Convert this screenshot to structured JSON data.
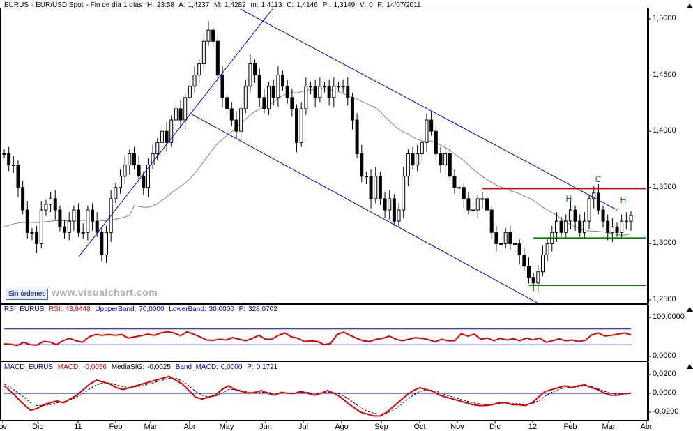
{
  "header": {
    "symbol": "EURUS",
    "name": "EUR/USD Spot",
    "period": "Fin de día 1 días",
    "hour_label": "H:",
    "hour": "23:58",
    "open_label": "A:",
    "open": "1,4237",
    "high_label": "M:",
    "high": "1,4282",
    "low_label": "m:",
    "low": "1,4113",
    "close_label": "C:",
    "close": "1,4146",
    "p_label": "P :",
    "p": "1,3149",
    "v_label": "V:",
    "v": "0",
    "f_label": "F:",
    "f": "14/07/2011"
  },
  "rsi_panel": {
    "name": "RSI_EURUS",
    "rsi_label": "RSI:",
    "rsi": "43,9448",
    "upper_label": "UppperBand:",
    "upper": "70,0000",
    "lower_label": "LowerBand:",
    "lower": "30,0000",
    "p_label": "P:",
    "p": "328,0702"
  },
  "macd_panel": {
    "name": "MACD_EURUS",
    "macd_label": "MACD:",
    "macd": "-0,0056",
    "sig_label": "MediaSIG:",
    "sig": "-0,0025",
    "band_label": "Band_MACD:",
    "band": "0,0000",
    "p_label": "P:",
    "p": "0,1721"
  },
  "orders_button": "Sin órdenes",
  "watermark": "www.visualchart.com",
  "annotations": {
    "c": "C",
    "h1": "H",
    "h2": "H"
  },
  "colors": {
    "price": "#000000",
    "channel": "#0000cc",
    "moving_average": "#808080",
    "resistance": "#dd0000",
    "support": "#008000",
    "rsi": "#dd0000",
    "macd": "#dd0000",
    "signal": "#000000",
    "annotation": "#008000"
  },
  "chart_data": [
    {
      "type": "candlestick",
      "title": "EURUS - EUR/USD Spot - Fin de día 1 días",
      "y_ticks": [
        "1,5000",
        "1,4500",
        "1,4000",
        "1,3500",
        "1,3000",
        "1,2500"
      ],
      "ylim": [
        1.2475,
        1.5093
      ],
      "x_ticks": [
        "ov",
        "Dic",
        "11",
        "Feb",
        "Mar",
        "Abr",
        "May",
        "Jun",
        "Jul",
        "Ago",
        "Sep",
        "Oct",
        "Nov",
        "Dic",
        "12",
        "Feb",
        "Mar",
        "Abr"
      ],
      "closes": [
        {
          "x": 0,
          "y": 1.38
        },
        {
          "x": 1,
          "y": 1.37
        },
        {
          "x": 2,
          "y": 1.37
        },
        {
          "x": 3,
          "y": 1.35
        },
        {
          "x": 4,
          "y": 1.33
        },
        {
          "x": 5,
          "y": 1.31
        },
        {
          "x": 6,
          "y": 1.31
        },
        {
          "x": 7,
          "y": 1.3
        },
        {
          "x": 8,
          "y": 1.33
        },
        {
          "x": 9,
          "y": 1.335
        },
        {
          "x": 10,
          "y": 1.34
        },
        {
          "x": 11,
          "y": 1.33
        },
        {
          "x": 12,
          "y": 1.315
        },
        {
          "x": 13,
          "y": 1.31
        },
        {
          "x": 14,
          "y": 1.32
        },
        {
          "x": 15,
          "y": 1.33
        },
        {
          "x": 16,
          "y": 1.31
        },
        {
          "x": 17,
          "y": 1.31
        },
        {
          "x": 18,
          "y": 1.33
        },
        {
          "x": 19,
          "y": 1.32
        },
        {
          "x": 20,
          "y": 1.31
        },
        {
          "x": 21,
          "y": 1.29
        },
        {
          "x": 22,
          "y": 1.31
        },
        {
          "x": 23,
          "y": 1.34
        },
        {
          "x": 24,
          "y": 1.35
        },
        {
          "x": 25,
          "y": 1.36
        },
        {
          "x": 26,
          "y": 1.37
        },
        {
          "x": 27,
          "y": 1.38
        },
        {
          "x": 28,
          "y": 1.37
        },
        {
          "x": 29,
          "y": 1.36
        },
        {
          "x": 30,
          "y": 1.35
        },
        {
          "x": 31,
          "y": 1.37
        },
        {
          "x": 32,
          "y": 1.38
        },
        {
          "x": 33,
          "y": 1.39
        },
        {
          "x": 34,
          "y": 1.4
        },
        {
          "x": 35,
          "y": 1.39
        },
        {
          "x": 36,
          "y": 1.41
        },
        {
          "x": 37,
          "y": 1.42
        },
        {
          "x": 38,
          "y": 1.41
        },
        {
          "x": 39,
          "y": 1.43
        },
        {
          "x": 40,
          "y": 1.44
        },
        {
          "x": 41,
          "y": 1.45
        },
        {
          "x": 42,
          "y": 1.46
        },
        {
          "x": 43,
          "y": 1.48
        },
        {
          "x": 44,
          "y": 1.49
        },
        {
          "x": 45,
          "y": 1.48
        },
        {
          "x": 46,
          "y": 1.45
        },
        {
          "x": 47,
          "y": 1.43
        },
        {
          "x": 48,
          "y": 1.42
        },
        {
          "x": 49,
          "y": 1.41
        },
        {
          "x": 50,
          "y": 1.4
        },
        {
          "x": 51,
          "y": 1.42
        },
        {
          "x": 52,
          "y": 1.44
        },
        {
          "x": 53,
          "y": 1.46
        },
        {
          "x": 54,
          "y": 1.45
        },
        {
          "x": 55,
          "y": 1.43
        },
        {
          "x": 56,
          "y": 1.42
        },
        {
          "x": 57,
          "y": 1.44
        },
        {
          "x": 58,
          "y": 1.43
        },
        {
          "x": 59,
          "y": 1.45
        },
        {
          "x": 60,
          "y": 1.44
        },
        {
          "x": 61,
          "y": 1.43
        },
        {
          "x": 62,
          "y": 1.42
        },
        {
          "x": 63,
          "y": 1.39
        },
        {
          "x": 64,
          "y": 1.42
        },
        {
          "x": 65,
          "y": 1.44
        },
        {
          "x": 66,
          "y": 1.44
        },
        {
          "x": 67,
          "y": 1.43
        },
        {
          "x": 68,
          "y": 1.44
        },
        {
          "x": 69,
          "y": 1.44
        },
        {
          "x": 70,
          "y": 1.43
        },
        {
          "x": 71,
          "y": 1.44
        },
        {
          "x": 72,
          "y": 1.44
        },
        {
          "x": 73,
          "y": 1.44
        },
        {
          "x": 74,
          "y": 1.43
        },
        {
          "x": 75,
          "y": 1.41
        },
        {
          "x": 76,
          "y": 1.38
        },
        {
          "x": 77,
          "y": 1.36
        },
        {
          "x": 78,
          "y": 1.36
        },
        {
          "x": 79,
          "y": 1.34
        },
        {
          "x": 80,
          "y": 1.36
        },
        {
          "x": 81,
          "y": 1.34
        },
        {
          "x": 82,
          "y": 1.33
        },
        {
          "x": 83,
          "y": 1.34
        },
        {
          "x": 84,
          "y": 1.32
        },
        {
          "x": 85,
          "y": 1.33
        },
        {
          "x": 86,
          "y": 1.36
        },
        {
          "x": 87,
          "y": 1.38
        },
        {
          "x": 88,
          "y": 1.37
        },
        {
          "x": 89,
          "y": 1.38
        },
        {
          "x": 90,
          "y": 1.39
        },
        {
          "x": 91,
          "y": 1.41
        },
        {
          "x": 92,
          "y": 1.4
        },
        {
          "x": 93,
          "y": 1.38
        },
        {
          "x": 94,
          "y": 1.37
        },
        {
          "x": 95,
          "y": 1.38
        },
        {
          "x": 96,
          "y": 1.36
        },
        {
          "x": 97,
          "y": 1.35
        },
        {
          "x": 98,
          "y": 1.35
        },
        {
          "x": 99,
          "y": 1.34
        },
        {
          "x": 100,
          "y": 1.33
        },
        {
          "x": 101,
          "y": 1.33
        },
        {
          "x": 102,
          "y": 1.34
        },
        {
          "x": 103,
          "y": 1.34
        },
        {
          "x": 104,
          "y": 1.33
        },
        {
          "x": 105,
          "y": 1.31
        },
        {
          "x": 106,
          "y": 1.3
        },
        {
          "x": 107,
          "y": 1.3
        },
        {
          "x": 108,
          "y": 1.31
        },
        {
          "x": 109,
          "y": 1.3
        },
        {
          "x": 110,
          "y": 1.3
        },
        {
          "x": 111,
          "y": 1.29
        },
        {
          "x": 112,
          "y": 1.28
        },
        {
          "x": 113,
          "y": 1.27
        },
        {
          "x": 114,
          "y": 1.265
        },
        {
          "x": 115,
          "y": 1.275
        },
        {
          "x": 116,
          "y": 1.29
        },
        {
          "x": 117,
          "y": 1.3
        },
        {
          "x": 118,
          "y": 1.31
        },
        {
          "x": 119,
          "y": 1.32
        },
        {
          "x": 120,
          "y": 1.31
        },
        {
          "x": 121,
          "y": 1.32
        },
        {
          "x": 122,
          "y": 1.33
        },
        {
          "x": 123,
          "y": 1.32
        },
        {
          "x": 124,
          "y": 1.31
        },
        {
          "x": 125,
          "y": 1.32
        },
        {
          "x": 126,
          "y": 1.34
        },
        {
          "x": 127,
          "y": 1.345
        },
        {
          "x": 128,
          "y": 1.33
        },
        {
          "x": 129,
          "y": 1.32
        },
        {
          "x": 130,
          "y": 1.31
        },
        {
          "x": 131,
          "y": 1.315
        },
        {
          "x": 132,
          "y": 1.31
        },
        {
          "x": 133,
          "y": 1.32
        },
        {
          "x": 134,
          "y": 1.32
        },
        {
          "x": 135,
          "y": 1.325
        }
      ],
      "overlays": {
        "channel_upper": [
          {
            "x": 48,
            "y": 1.515
          },
          {
            "x": 132,
            "y": 1.33
          }
        ],
        "channel_lower": [
          {
            "x": 40,
            "y": 1.416
          },
          {
            "x": 115,
            "y": 1.247
          }
        ],
        "trend_support": [
          {
            "x": 16,
            "y": 1.288
          },
          {
            "x": 58,
            "y": 1.51
          }
        ],
        "resistance": {
          "y": 1.349,
          "x_from": 103,
          "x_to": 135
        },
        "support_upper": {
          "y": 1.305,
          "x_from": 114,
          "x_to": 135
        },
        "support_lower": {
          "y": 1.263,
          "x_from": 113,
          "x_to": 135
        }
      }
    },
    {
      "type": "line",
      "title": "RSI_EURUS",
      "y_ticks": [
        "100,0000",
        "0,0000"
      ],
      "ylim": [
        -2,
        112
      ],
      "bands": [
        70,
        30
      ],
      "values": [
        32,
        31,
        28,
        36,
        30,
        29,
        38,
        37,
        30,
        40,
        46,
        40,
        36,
        50,
        56,
        54,
        56,
        54,
        56,
        47,
        50,
        53,
        57,
        54,
        60,
        63,
        60,
        53,
        63,
        57,
        50,
        42,
        41,
        44,
        42,
        48,
        44,
        40,
        46,
        54,
        44,
        44,
        54,
        60,
        50,
        46,
        38,
        40,
        38,
        30,
        33,
        56,
        62,
        54,
        46,
        40,
        38,
        44,
        46,
        52,
        44,
        40,
        44,
        48,
        46,
        43,
        37,
        44,
        40,
        40,
        58,
        52,
        57,
        44,
        47,
        40,
        46,
        42,
        45,
        40,
        47,
        42,
        47,
        36,
        40,
        45,
        40,
        42,
        38,
        41,
        55,
        60,
        52,
        54,
        57,
        60,
        55
      ]
    },
    {
      "type": "line",
      "title": "MACD_EURUS",
      "y_ticks": [
        "0,0200",
        "0,0000",
        "-0,0200"
      ],
      "ylim": [
        -0.029,
        0.026
      ],
      "macd": [
        0.008,
        0.002,
        -0.005,
        -0.012,
        -0.018,
        -0.016,
        -0.012,
        -0.01,
        -0.008,
        -0.01,
        -0.006,
        -0.002,
        0.004,
        0.01,
        0.014,
        0.012,
        0.01,
        0.006,
        0.004,
        0.006,
        0.008,
        0.01,
        0.012,
        0.014,
        0.016,
        0.018,
        0.014,
        0.01,
        0.003,
        -0.004,
        -0.006,
        -0.004,
        -0.002,
        0.004,
        0.008,
        0.004,
        0.002,
        0.0,
        0.001,
        0.003,
        0.0,
        -0.002,
        0.001,
        0.0,
        0.0,
        0.002,
        0.0,
        -0.002,
        0.0,
        0.003,
        0.0,
        -0.004,
        -0.01,
        -0.015,
        -0.02,
        -0.022,
        -0.024,
        -0.024,
        -0.02,
        -0.014,
        -0.008,
        -0.002,
        0.003,
        0.006,
        0.004,
        0.002,
        -0.002,
        -0.004,
        -0.006,
        -0.008,
        -0.01,
        -0.012,
        -0.013,
        -0.013,
        -0.012,
        -0.01,
        -0.01,
        -0.012,
        -0.012,
        -0.013,
        -0.01,
        -0.004,
        0.002,
        0.004,
        0.006,
        0.008,
        0.006,
        0.008,
        0.009,
        0.006,
        0.004,
        0.0,
        -0.002,
        -0.002,
        0.0,
        0.0
      ],
      "signal": [
        0.01,
        0.006,
        0.001,
        -0.004,
        -0.01,
        -0.013,
        -0.013,
        -0.012,
        -0.01,
        -0.009,
        -0.007,
        -0.004,
        0.0,
        0.005,
        0.009,
        0.011,
        0.011,
        0.009,
        0.007,
        0.006,
        0.007,
        0.008,
        0.01,
        0.012,
        0.014,
        0.016,
        0.016,
        0.013,
        0.008,
        0.002,
        -0.002,
        -0.004,
        -0.003,
        0.0,
        0.004,
        0.004,
        0.003,
        0.001,
        0.0,
        0.001,
        0.001,
        0.0,
        0.0,
        0.0,
        0.0,
        0.001,
        0.001,
        0.0,
        0.0,
        0.001,
        0.001,
        -0.001,
        -0.005,
        -0.01,
        -0.015,
        -0.019,
        -0.021,
        -0.022,
        -0.021,
        -0.018,
        -0.013,
        -0.007,
        -0.002,
        0.002,
        0.004,
        0.003,
        0.001,
        -0.002,
        -0.004,
        -0.006,
        -0.008,
        -0.01,
        -0.011,
        -0.012,
        -0.012,
        -0.011,
        -0.01,
        -0.011,
        -0.011,
        -0.012,
        -0.011,
        -0.008,
        -0.003,
        0.001,
        0.004,
        0.006,
        0.006,
        0.007,
        0.008,
        0.007,
        0.005,
        0.002,
        0.0,
        -0.001,
        -0.001,
        0.0
      ]
    }
  ]
}
